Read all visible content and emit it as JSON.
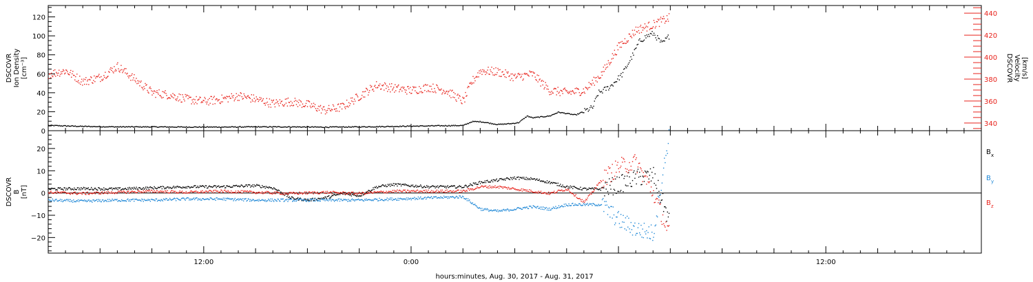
{
  "chart_data": [
    {
      "type": "scatter",
      "ylabel_left": [
        "DSCOVR",
        "Ion Density",
        "[cm⁻³]"
      ],
      "ylabel_right": [
        "DSCOVR",
        "Velocity",
        "[km/s]"
      ],
      "yticks_left": [
        "0",
        "20",
        "40",
        "60",
        "80",
        "100",
        "120"
      ],
      "yticks_right": [
        "340",
        "360",
        "380",
        "400",
        "420",
        "440"
      ],
      "ylim_left": [
        0,
        132
      ],
      "ylim_right": [
        333,
        447
      ],
      "left_axis_color": "#000000",
      "right_axis_color": "#e8231c",
      "series": [
        {
          "color": "#000000",
          "axis": "left",
          "x": [
            0,
            2,
            4,
            6,
            8,
            10,
            12,
            14,
            16,
            18,
            20,
            22,
            24,
            24.5,
            25,
            26,
            26.8,
            27.2,
            27.7,
            28,
            29,
            29.5,
            30.5,
            31.5,
            31.8,
            32.5,
            33.2,
            33.8,
            34.2,
            34.6,
            35.0,
            35.5,
            35.9
          ],
          "y": [
            6,
            5,
            4.5,
            4.5,
            4.3,
            4.3,
            4.5,
            4.5,
            4.2,
            4.5,
            5,
            5.5,
            6,
            10,
            10,
            7,
            8,
            9,
            16,
            14,
            16,
            20,
            17,
            25,
            40,
            47,
            60,
            80,
            95,
            100,
            103,
            92,
            100
          ]
        },
        {
          "color": "#e8231c",
          "axis": "right",
          "x": [
            0,
            1,
            2,
            3,
            4,
            5,
            6,
            7,
            8,
            9,
            10,
            11,
            12,
            13,
            14,
            15,
            16,
            17,
            18,
            19,
            20,
            21,
            22,
            23,
            24,
            24.5,
            25,
            26,
            27,
            28,
            29,
            30,
            31,
            32,
            33,
            34,
            35,
            35.9
          ],
          "y": [
            385,
            388,
            378,
            382,
            392,
            380,
            368,
            366,
            362,
            360,
            362,
            365,
            362,
            358,
            360,
            357,
            352,
            355,
            365,
            375,
            372,
            370,
            373,
            370,
            360,
            378,
            388,
            387,
            382,
            385,
            370,
            368,
            370,
            385,
            410,
            425,
            430,
            436
          ]
        }
      ],
      "series_labels": [],
      "title": ""
    },
    {
      "type": "scatter",
      "ylabel_left": [
        "DSCOVR",
        "B",
        "[nT]"
      ],
      "yticks_left": [
        "−20",
        "−10",
        "0",
        "10",
        "20"
      ],
      "ylim_left": [
        -27,
        28
      ],
      "zero_line": true,
      "legend_position": "right",
      "series": [
        {
          "name": "Bₓ",
          "color": "#000000",
          "x": [
            0,
            2,
            4,
            6,
            8,
            10,
            11,
            12,
            13,
            14,
            15,
            16,
            17,
            18,
            19,
            20,
            21,
            22,
            23,
            24,
            25,
            26,
            27,
            28,
            29,
            30,
            31,
            32,
            33,
            34,
            35,
            35.9
          ],
          "y": [
            2,
            2.2,
            2,
            2.5,
            3,
            3,
            3.3,
            3.5,
            2.5,
            -2,
            -3,
            -2,
            0,
            -1,
            3,
            4,
            3.5,
            3,
            3,
            3,
            5,
            6,
            7,
            6.5,
            5,
            3,
            2,
            2,
            4,
            7,
            8,
            -12
          ]
        },
        {
          "name": "B_y",
          "color": "#1e87d6",
          "x": [
            0,
            2,
            4,
            6,
            8,
            10,
            12,
            14,
            16,
            18,
            20,
            22,
            24,
            25,
            26,
            27,
            28,
            29,
            30,
            31,
            32,
            33,
            34,
            35,
            35.9
          ],
          "y": [
            -3,
            -3.5,
            -3,
            -3,
            -2.5,
            -2.5,
            -3,
            -3,
            -3,
            -3,
            -2.5,
            -2,
            -1.5,
            -7,
            -8,
            -7,
            -6,
            -7,
            -5,
            -5,
            -5,
            -12,
            -16,
            -18,
            26
          ]
        },
        {
          "name": "B_z",
          "color": "#e8231c",
          "x": [
            0,
            2,
            4,
            6,
            8,
            10,
            12,
            14,
            16,
            18,
            20,
            22,
            24,
            25,
            26,
            27,
            28,
            29,
            30,
            31,
            32,
            33,
            34,
            35,
            35.9
          ],
          "y": [
            0.5,
            0,
            0.5,
            1,
            0.5,
            1,
            0.5,
            0,
            0.5,
            0,
            1,
            1,
            1,
            3,
            3,
            2,
            1,
            0,
            2,
            -4,
            6,
            12,
            14,
            0,
            -18
          ]
        }
      ],
      "title": ""
    }
  ],
  "xaxis": {
    "label": "hours:minutes, Aug. 30, 2017 - Aug. 31, 2017",
    "tick_labels": [
      "12:00",
      "0:00",
      "12:00"
    ],
    "tick_hours": [
      9,
      21,
      45
    ],
    "xlim_hours": [
      0,
      54
    ]
  },
  "legend": {
    "items": [
      {
        "main": "B",
        "sub": "x",
        "color": "#000000"
      },
      {
        "main": "B",
        "sub": "y",
        "color": "#1e87d6"
      },
      {
        "main": "B",
        "sub": "z",
        "color": "#e8231c"
      }
    ]
  }
}
